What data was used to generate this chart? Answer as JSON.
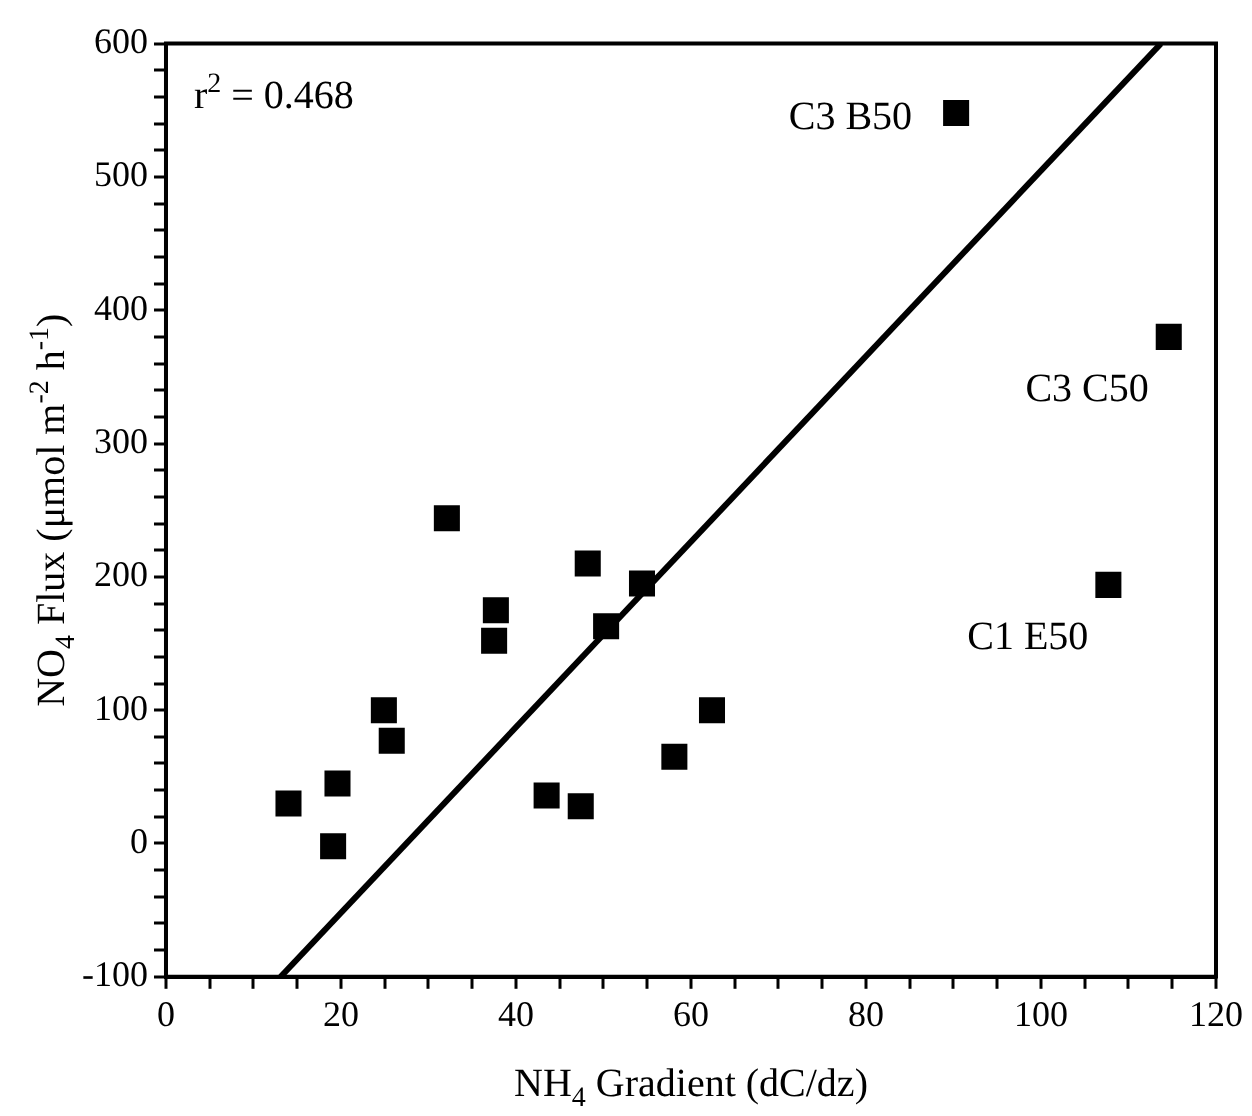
{
  "chart_data": {
    "type": "scatter",
    "xlabel": "NH$_{4}$ Gradient (dC/dz)",
    "ylabel": "NO$_{4}$ Flux (μmol m$^{-2}$ h$^{-1}$)",
    "series": [
      {
        "type": "scatter",
        "color": "#000000",
        "marker": "square",
        "x": [
          14.0,
          19.6,
          19.1,
          24.9,
          25.8,
          32.1,
          37.7,
          37.5,
          48.2,
          54.4,
          50.3,
          43.5,
          47.4,
          58.1,
          62.4,
          90.3,
          114.6,
          107.7
        ],
        "values": [
          30,
          45,
          -2,
          100,
          77,
          244,
          175,
          152,
          210,
          195,
          163,
          36,
          28,
          65,
          100,
          548,
          380,
          194
        ]
      },
      {
        "type": "line",
        "color": "#000000",
        "marker": "none",
        "line_style": "solid",
        "x": [
          13.1,
          113.7
        ],
        "values": [
          -100,
          600
        ]
      }
    ],
    "xlim": [
      0,
      120
    ],
    "xticks": [
      0,
      {
        "value": 5,
        "label": null
      },
      {
        "value": 10,
        "label": null
      },
      {
        "value": 15,
        "label": null
      },
      20,
      {
        "value": 25,
        "label": null
      },
      {
        "value": 30,
        "label": null
      },
      {
        "value": 35,
        "label": null
      },
      40,
      {
        "value": 45,
        "label": null
      },
      {
        "value": 50,
        "label": null
      },
      {
        "value": 55,
        "label": null
      },
      60,
      {
        "value": 65,
        "label": null
      },
      {
        "value": 70,
        "label": null
      },
      {
        "value": 75,
        "label": null
      },
      80,
      {
        "value": 85,
        "label": null
      },
      {
        "value": 90,
        "label": null
      },
      {
        "value": 95,
        "label": null
      },
      100,
      {
        "value": 105,
        "label": null
      },
      {
        "value": 110,
        "label": null
      },
      {
        "value": 115,
        "label": null
      },
      120
    ],
    "ylim": [
      -100,
      600
    ],
    "yticks": [
      {
        "value": -100,
        "label": "-100"
      },
      {
        "value": -80,
        "label": null
      },
      {
        "value": -60,
        "label": null
      },
      {
        "value": -40,
        "label": null
      },
      {
        "value": -20,
        "label": null
      },
      0,
      {
        "value": 20,
        "label": null
      },
      {
        "value": 40,
        "label": null
      },
      {
        "value": 60,
        "label": null
      },
      {
        "value": 80,
        "label": null
      },
      100,
      {
        "value": 120,
        "label": null
      },
      {
        "value": 140,
        "label": null
      },
      {
        "value": 160,
        "label": null
      },
      {
        "value": 180,
        "label": null
      },
      200,
      {
        "value": 220,
        "label": null
      },
      {
        "value": 240,
        "label": null
      },
      {
        "value": 260,
        "label": null
      },
      {
        "value": 280,
        "label": null
      },
      300,
      {
        "value": 320,
        "label": null
      },
      {
        "value": 340,
        "label": null
      },
      {
        "value": 360,
        "label": null
      },
      {
        "value": 380,
        "label": null
      },
      400,
      {
        "value": 420,
        "label": null
      },
      {
        "value": 440,
        "label": null
      },
      {
        "value": 460,
        "label": null
      },
      {
        "value": 480,
        "label": null
      },
      500,
      {
        "value": 520,
        "label": null
      },
      {
        "value": 540,
        "label": null
      },
      {
        "value": 560,
        "label": null
      },
      {
        "value": 580,
        "label": null
      },
      600
    ],
    "grid": false,
    "legend": false,
    "annotations": [
      "r$^{2}$ = 0.468",
      {
        "text": "C3 B50",
        "x": 90.3,
        "y": 548
      },
      {
        "text": "C3 C50",
        "x": 114.6,
        "y": 380
      },
      {
        "text": "C1 E50",
        "x": 107.7,
        "y": 194
      }
    ]
  }
}
